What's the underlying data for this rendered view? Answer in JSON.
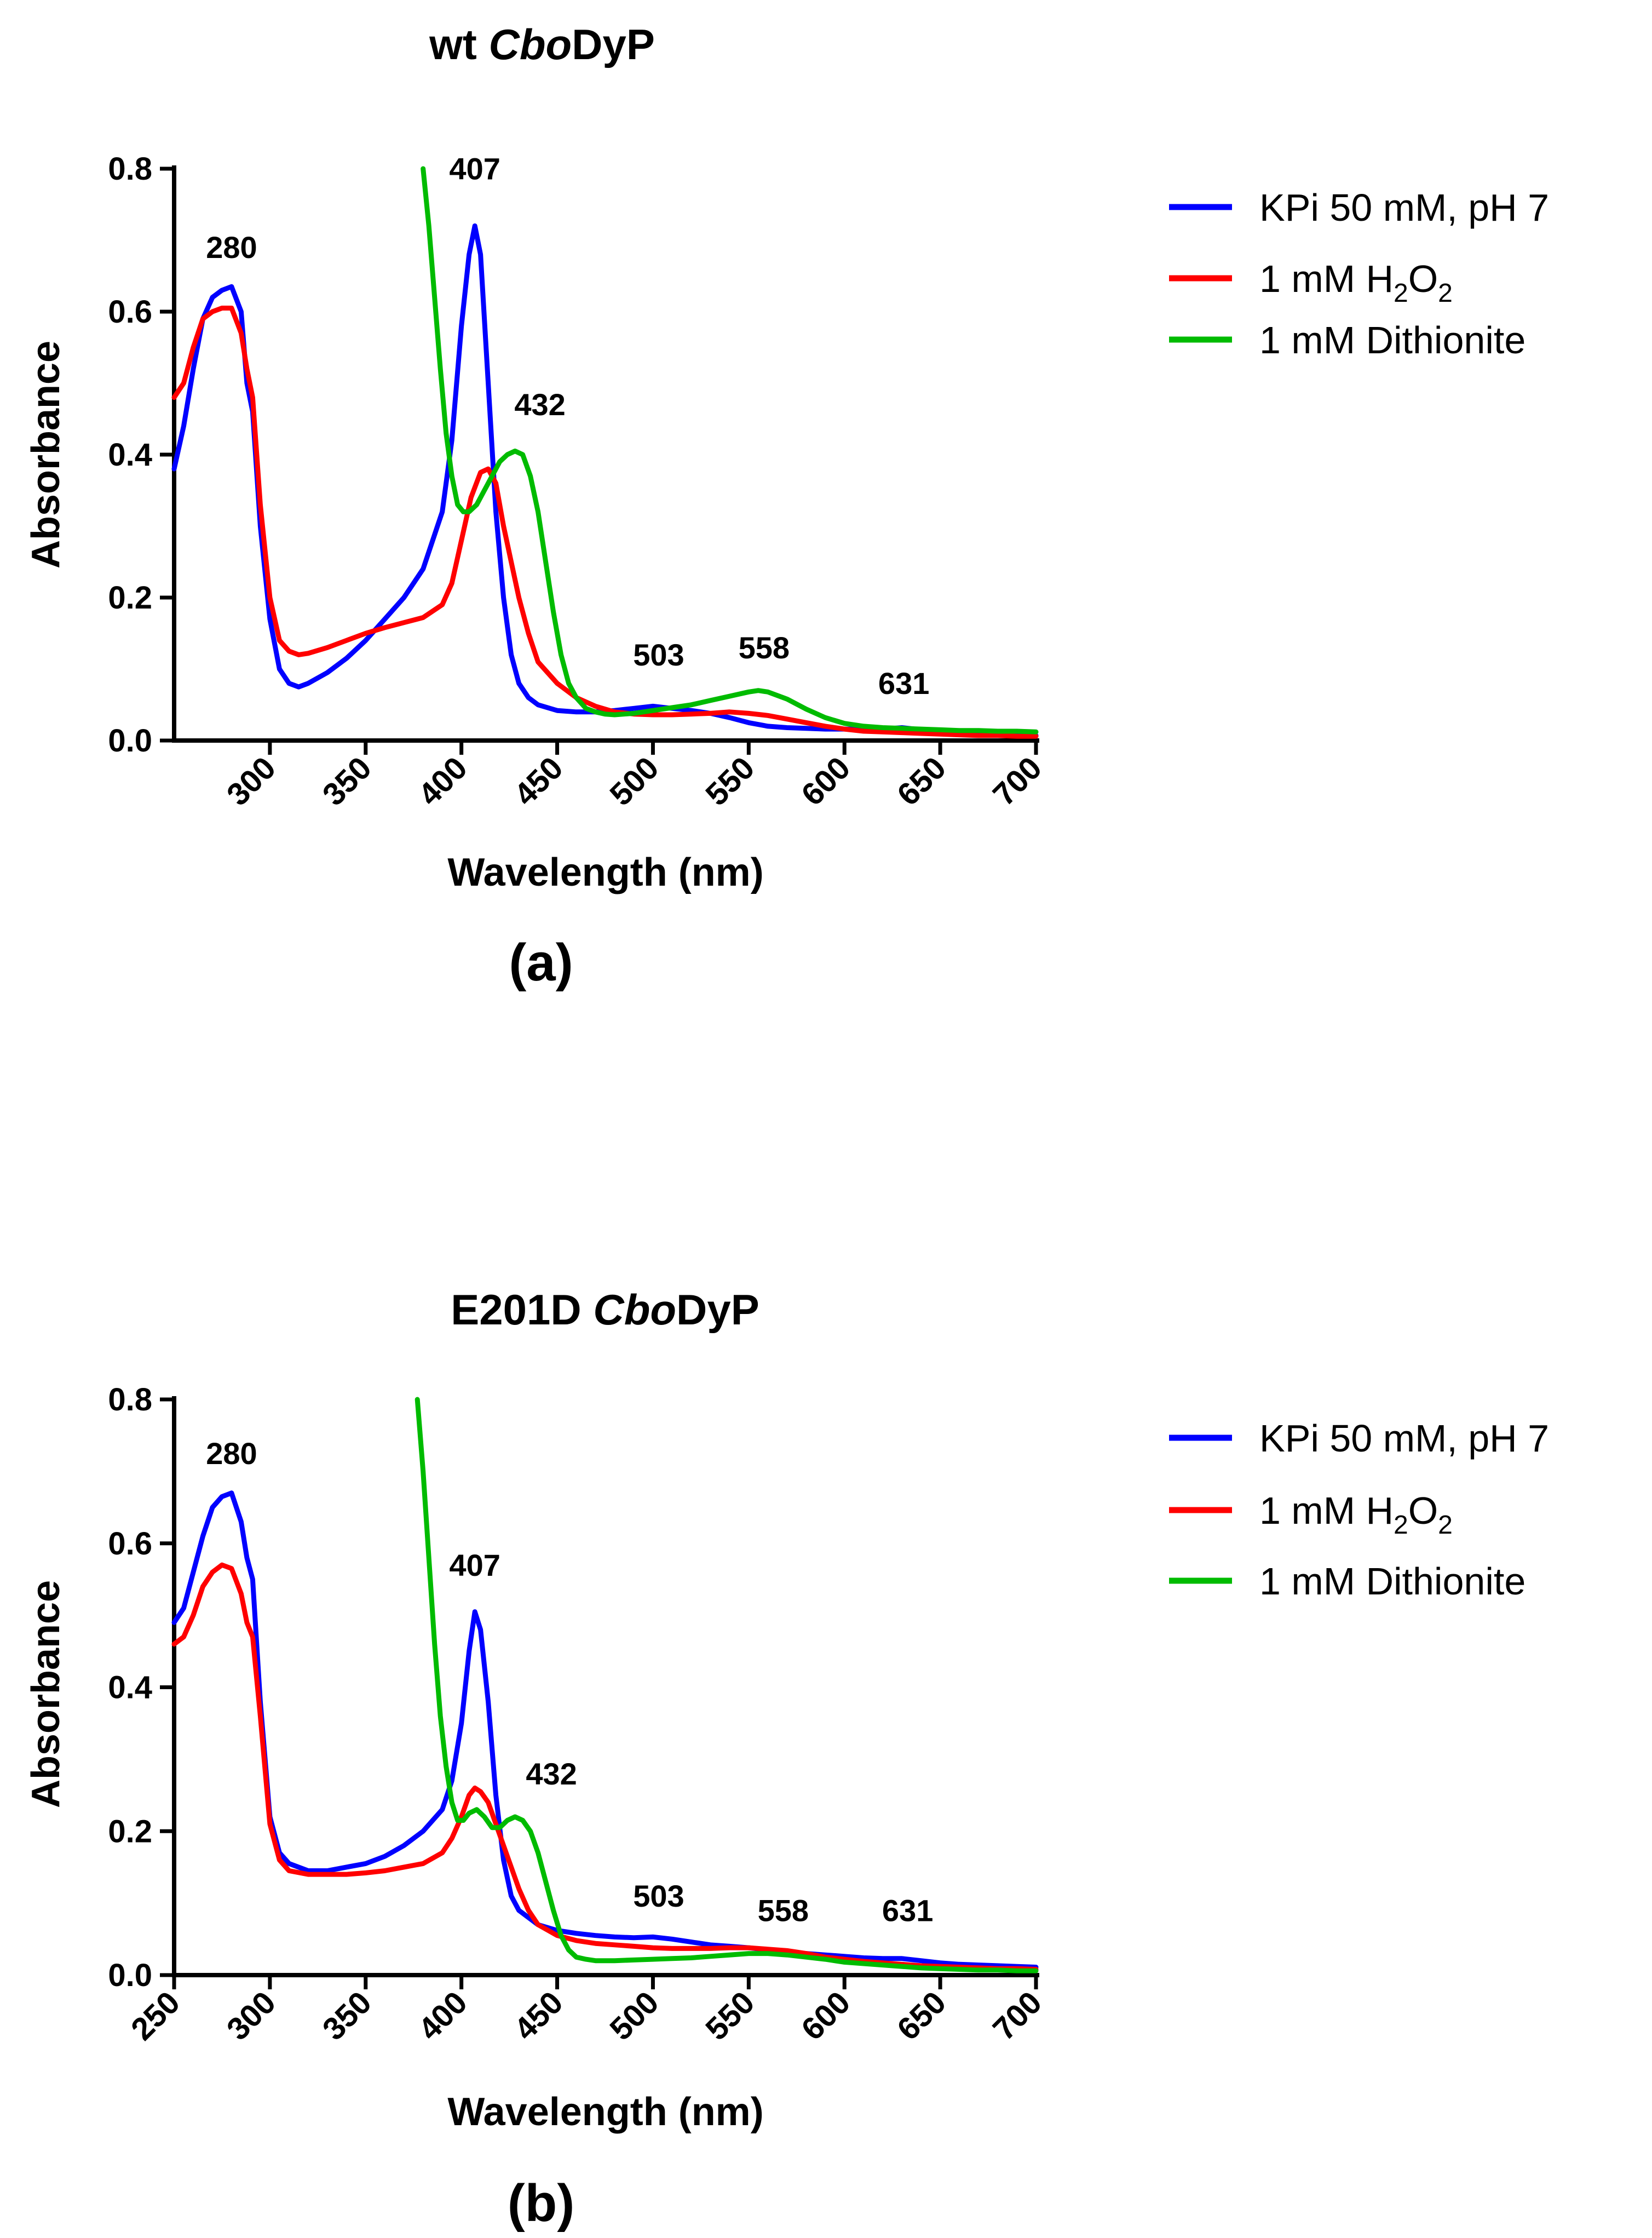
{
  "chart_data": [
    {
      "id": "a",
      "type": "line",
      "title_plain": "wt ",
      "title_italic": "Cbo",
      "title_rest": "DyP",
      "panel_label": "(a)",
      "xlabel": "Wavelength (nm)",
      "ylabel": "Absorbance",
      "xlim": [
        250,
        700
      ],
      "ylim": [
        0,
        0.8
      ],
      "xticks": [
        300,
        350,
        400,
        450,
        500,
        550,
        600,
        650,
        700
      ],
      "xtick_labels": [
        "300",
        "350",
        "400",
        "450",
        "500",
        "550",
        "600",
        "650",
        "700"
      ],
      "yticks": [
        0.0,
        0.2,
        0.4,
        0.6,
        0.8
      ],
      "ytick_labels": [
        "0.0",
        "0.2",
        "0.4",
        "0.6",
        "0.8"
      ],
      "legend": {
        "position": "right",
        "entries": [
          {
            "label": "KPi 50 mM, pH 7",
            "color": "#0000ff"
          },
          {
            "label_pre": "1 mM H",
            "sub1": "2",
            "label_mid": "O",
            "sub2": "2",
            "color": "#ff0000"
          },
          {
            "label": "1 mM Dithionite",
            "color": "#00bb00"
          }
        ]
      },
      "annotations": [
        {
          "text": "280",
          "x": 280,
          "y": 0.675
        },
        {
          "text": "407",
          "x": 407,
          "y": 0.785
        },
        {
          "text": "432",
          "x": 441,
          "y": 0.455
        },
        {
          "text": "503",
          "x": 503,
          "y": 0.105
        },
        {
          "text": "558",
          "x": 558,
          "y": 0.115
        },
        {
          "text": "631",
          "x": 631,
          "y": 0.065
        }
      ],
      "series": [
        {
          "name": "KPi 50 mM, pH 7",
          "color": "#0000ff",
          "x": [
            250,
            255,
            260,
            265,
            270,
            275,
            280,
            285,
            288,
            291,
            295,
            300,
            305,
            310,
            315,
            320,
            330,
            340,
            350,
            360,
            370,
            380,
            390,
            395,
            400,
            404,
            407,
            410,
            414,
            418,
            422,
            426,
            430,
            435,
            440,
            450,
            460,
            470,
            480,
            490,
            500,
            510,
            520,
            530,
            540,
            550,
            560,
            570,
            580,
            590,
            600,
            610,
            620,
            630,
            640,
            650,
            660,
            670,
            680,
            690,
            700
          ],
          "y": [
            0.38,
            0.44,
            0.52,
            0.59,
            0.62,
            0.63,
            0.635,
            0.6,
            0.5,
            0.46,
            0.3,
            0.17,
            0.1,
            0.08,
            0.075,
            0.08,
            0.095,
            0.115,
            0.14,
            0.17,
            0.2,
            0.24,
            0.32,
            0.42,
            0.58,
            0.68,
            0.72,
            0.68,
            0.5,
            0.32,
            0.2,
            0.12,
            0.08,
            0.06,
            0.05,
            0.042,
            0.04,
            0.04,
            0.042,
            0.045,
            0.048,
            0.045,
            0.042,
            0.038,
            0.032,
            0.025,
            0.02,
            0.018,
            0.017,
            0.016,
            0.016,
            0.016,
            0.016,
            0.018,
            0.015,
            0.012,
            0.01,
            0.009,
            0.008,
            0.008,
            0.007
          ]
        },
        {
          "name": "1 mM H2O2",
          "color": "#ff0000",
          "x": [
            250,
            255,
            260,
            265,
            270,
            275,
            280,
            285,
            288,
            291,
            295,
            300,
            305,
            310,
            315,
            320,
            330,
            340,
            350,
            360,
            370,
            380,
            390,
            395,
            400,
            405,
            410,
            414,
            418,
            422,
            426,
            430,
            435,
            440,
            450,
            460,
            470,
            480,
            490,
            500,
            510,
            520,
            530,
            540,
            550,
            560,
            570,
            580,
            590,
            600,
            610,
            620,
            630,
            640,
            650,
            660,
            670,
            680,
            690,
            700
          ],
          "y": [
            0.48,
            0.5,
            0.55,
            0.59,
            0.6,
            0.605,
            0.605,
            0.57,
            0.52,
            0.48,
            0.33,
            0.2,
            0.14,
            0.125,
            0.12,
            0.122,
            0.13,
            0.14,
            0.15,
            0.158,
            0.165,
            0.172,
            0.19,
            0.22,
            0.28,
            0.34,
            0.375,
            0.38,
            0.36,
            0.3,
            0.25,
            0.2,
            0.15,
            0.11,
            0.08,
            0.06,
            0.048,
            0.04,
            0.037,
            0.036,
            0.036,
            0.037,
            0.038,
            0.04,
            0.038,
            0.035,
            0.03,
            0.025,
            0.02,
            0.016,
            0.013,
            0.012,
            0.011,
            0.01,
            0.009,
            0.008,
            0.007,
            0.007,
            0.006,
            0.006
          ]
        },
        {
          "name": "1 mM Dithionite",
          "color": "#00bb00",
          "x": [
            380,
            383,
            386,
            389,
            392,
            395,
            398,
            401,
            404,
            408,
            412,
            416,
            420,
            424,
            428,
            432,
            436,
            440,
            444,
            448,
            452,
            456,
            460,
            465,
            470,
            475,
            480,
            490,
            500,
            510,
            520,
            530,
            540,
            550,
            555,
            560,
            570,
            580,
            590,
            600,
            610,
            620,
            630,
            640,
            650,
            660,
            670,
            680,
            690,
            700
          ],
          "y": [
            0.8,
            0.72,
            0.62,
            0.52,
            0.43,
            0.37,
            0.33,
            0.32,
            0.32,
            0.33,
            0.35,
            0.37,
            0.39,
            0.4,
            0.405,
            0.4,
            0.37,
            0.32,
            0.25,
            0.18,
            0.12,
            0.08,
            0.06,
            0.045,
            0.04,
            0.037,
            0.036,
            0.038,
            0.042,
            0.046,
            0.05,
            0.056,
            0.062,
            0.068,
            0.07,
            0.068,
            0.058,
            0.044,
            0.032,
            0.024,
            0.02,
            0.018,
            0.017,
            0.016,
            0.015,
            0.014,
            0.014,
            0.013,
            0.013,
            0.012
          ]
        }
      ]
    },
    {
      "id": "b",
      "type": "line",
      "title_plain": "E201D ",
      "title_italic": "Cbo",
      "title_rest": "DyP",
      "panel_label": "(b)",
      "xlabel": "Wavelength (nm)",
      "ylabel": "Absorbance",
      "xlim": [
        250,
        700
      ],
      "ylim": [
        0,
        0.8
      ],
      "xticks": [
        250,
        300,
        350,
        400,
        450,
        500,
        550,
        600,
        650,
        700
      ],
      "xtick_labels": [
        "250",
        "300",
        "350",
        "400",
        "450",
        "500",
        "550",
        "600",
        "650",
        "700"
      ],
      "yticks": [
        0.0,
        0.2,
        0.4,
        0.6,
        0.8
      ],
      "ytick_labels": [
        "0.0",
        "0.2",
        "0.4",
        "0.6",
        "0.8"
      ],
      "legend": {
        "position": "right",
        "entries": [
          {
            "label": "KPi 50 mM, pH 7",
            "color": "#0000ff"
          },
          {
            "label_pre": "1 mM H",
            "sub1": "2",
            "label_mid": "O",
            "sub2": "2",
            "color": "#ff0000"
          },
          {
            "label": "1 mM Dithionite",
            "color": "#00bb00"
          }
        ]
      },
      "annotations": [
        {
          "text": "280",
          "x": 280,
          "y": 0.71
        },
        {
          "text": "407",
          "x": 407,
          "y": 0.555
        },
        {
          "text": "432",
          "x": 447,
          "y": 0.265
        },
        {
          "text": "503",
          "x": 503,
          "y": 0.095
        },
        {
          "text": "558",
          "x": 568,
          "y": 0.075
        },
        {
          "text": "631",
          "x": 633,
          "y": 0.075
        }
      ],
      "series": [
        {
          "name": "KPi 50 mM, pH 7",
          "color": "#0000ff",
          "x": [
            250,
            255,
            260,
            265,
            270,
            275,
            280,
            285,
            288,
            291,
            295,
            300,
            305,
            310,
            320,
            330,
            340,
            350,
            360,
            370,
            380,
            390,
            395,
            400,
            404,
            407,
            410,
            414,
            418,
            422,
            426,
            430,
            435,
            440,
            450,
            460,
            470,
            480,
            490,
            500,
            510,
            520,
            530,
            540,
            550,
            560,
            570,
            580,
            590,
            600,
            610,
            620,
            630,
            640,
            650,
            660,
            670,
            680,
            690,
            700
          ],
          "y": [
            0.49,
            0.51,
            0.56,
            0.61,
            0.65,
            0.665,
            0.67,
            0.63,
            0.58,
            0.55,
            0.38,
            0.22,
            0.17,
            0.155,
            0.145,
            0.145,
            0.15,
            0.155,
            0.165,
            0.18,
            0.2,
            0.23,
            0.27,
            0.35,
            0.45,
            0.505,
            0.48,
            0.38,
            0.25,
            0.16,
            0.11,
            0.09,
            0.08,
            0.07,
            0.062,
            0.058,
            0.055,
            0.053,
            0.052,
            0.053,
            0.05,
            0.046,
            0.042,
            0.04,
            0.038,
            0.035,
            0.032,
            0.03,
            0.028,
            0.026,
            0.024,
            0.023,
            0.023,
            0.02,
            0.017,
            0.015,
            0.014,
            0.013,
            0.012,
            0.011
          ]
        },
        {
          "name": "1 mM H2O2",
          "color": "#ff0000",
          "x": [
            250,
            255,
            260,
            265,
            270,
            275,
            280,
            285,
            288,
            291,
            295,
            300,
            305,
            310,
            320,
            330,
            340,
            350,
            360,
            370,
            380,
            390,
            395,
            400,
            404,
            407,
            410,
            414,
            418,
            422,
            426,
            430,
            435,
            440,
            450,
            460,
            470,
            480,
            490,
            500,
            510,
            520,
            530,
            540,
            550,
            560,
            570,
            580,
            590,
            600,
            610,
            620,
            630,
            640,
            650,
            660,
            670,
            680,
            690,
            700
          ],
          "y": [
            0.46,
            0.47,
            0.5,
            0.54,
            0.56,
            0.57,
            0.565,
            0.53,
            0.49,
            0.47,
            0.36,
            0.21,
            0.16,
            0.145,
            0.14,
            0.14,
            0.14,
            0.142,
            0.145,
            0.15,
            0.155,
            0.17,
            0.19,
            0.22,
            0.25,
            0.26,
            0.255,
            0.24,
            0.21,
            0.18,
            0.15,
            0.12,
            0.09,
            0.07,
            0.055,
            0.048,
            0.044,
            0.042,
            0.04,
            0.038,
            0.037,
            0.037,
            0.037,
            0.038,
            0.038,
            0.036,
            0.034,
            0.03,
            0.025,
            0.022,
            0.019,
            0.017,
            0.015,
            0.013,
            0.012,
            0.011,
            0.01,
            0.009,
            0.009,
            0.008
          ]
        },
        {
          "name": "1 mM Dithionite",
          "color": "#00bb00",
          "x": [
            377,
            380,
            383,
            386,
            389,
            392,
            395,
            398,
            401,
            404,
            408,
            412,
            416,
            420,
            424,
            428,
            432,
            436,
            440,
            444,
            448,
            452,
            456,
            460,
            465,
            470,
            480,
            490,
            500,
            510,
            520,
            530,
            540,
            550,
            560,
            570,
            580,
            590,
            600,
            610,
            620,
            630,
            640,
            650,
            660,
            670,
            680,
            690,
            700
          ],
          "y": [
            0.8,
            0.7,
            0.58,
            0.46,
            0.36,
            0.29,
            0.24,
            0.215,
            0.215,
            0.225,
            0.23,
            0.22,
            0.205,
            0.205,
            0.215,
            0.22,
            0.215,
            0.2,
            0.17,
            0.13,
            0.09,
            0.055,
            0.035,
            0.025,
            0.022,
            0.02,
            0.02,
            0.021,
            0.022,
            0.023,
            0.024,
            0.026,
            0.028,
            0.03,
            0.03,
            0.028,
            0.025,
            0.022,
            0.018,
            0.016,
            0.014,
            0.012,
            0.01,
            0.009,
            0.008,
            0.007,
            0.007,
            0.006,
            0.006
          ]
        }
      ]
    }
  ]
}
